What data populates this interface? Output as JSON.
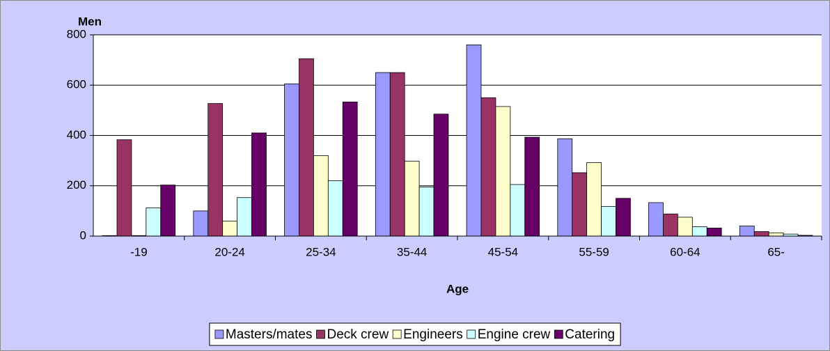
{
  "chart_data": {
    "type": "bar",
    "y_label": "Men",
    "x_label": "Age",
    "categories": [
      "-19",
      "20-24",
      "25-34",
      "35-44",
      "45-54",
      "55-59",
      "60-64",
      "65-"
    ],
    "series": [
      {
        "name": "Masters/mates",
        "color": "#9999ff",
        "values": [
          2,
          100,
          605,
          650,
          760,
          387,
          133,
          40
        ]
      },
      {
        "name": "Deck crew",
        "color": "#993366",
        "values": [
          383,
          527,
          705,
          650,
          550,
          252,
          88,
          18
        ]
      },
      {
        "name": "Engineers",
        "color": "#ffffcc",
        "values": [
          2,
          60,
          320,
          298,
          515,
          292,
          75,
          13
        ]
      },
      {
        "name": "Engine crew",
        "color": "#ccffff",
        "values": [
          112,
          153,
          220,
          195,
          205,
          118,
          37,
          8
        ]
      },
      {
        "name": "Catering",
        "color": "#660066",
        "values": [
          203,
          410,
          533,
          485,
          393,
          150,
          32,
          3
        ]
      }
    ],
    "ylim": [
      0,
      800
    ],
    "yticks": [
      0,
      200,
      400,
      600,
      800
    ],
    "grid": true,
    "legend": "bottom"
  }
}
